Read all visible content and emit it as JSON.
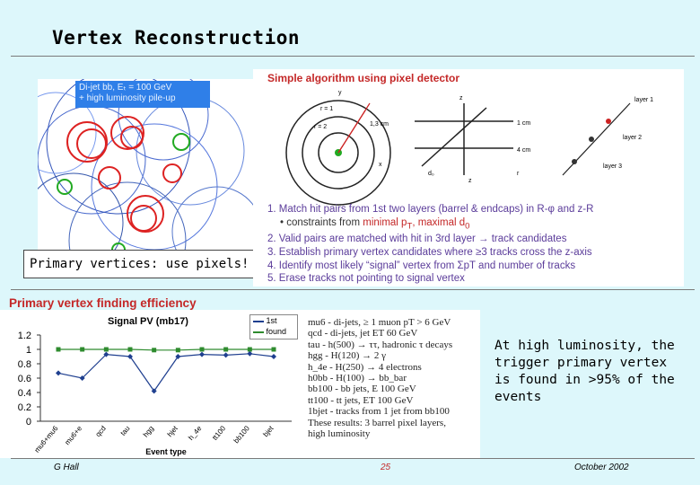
{
  "slide": {
    "title": "Vertex Reconstruction",
    "primary_label": "Primary vertices: use pixels!",
    "event_label_line1": "Di-jet bb, Eₜ = 100 GeV",
    "event_label_line2": "+ high luminosity pile-up"
  },
  "algorithm": {
    "title": "Simple algorithm using pixel detector",
    "diagram_labels": [
      "r = 1",
      "r = 2",
      "1,3 cm",
      "y",
      "x",
      "z",
      "1 cm",
      "4 cm",
      "r",
      "layer 1",
      "layer 2",
      "layer 3",
      "d₀",
      "z"
    ],
    "step1": "1. Match hit pairs from 1st two layers (barrel & endcaps) in R-φ and z-R",
    "step1b_a": "• constraints from ",
    "step1b_b": "minimal p",
    "step1b_c": "T",
    "step1b_d": ", maximal d",
    "step1b_e": "0",
    "step2": "2. Valid pairs are matched with hit in 3rd layer → track candidates",
    "step3": "3. Establish primary vertex candidates where ≥3 tracks cross the z-axis",
    "step4": "4. Identify most likely “signal” vertex from ΣpT and number of tracks",
    "step5": "5. Erase tracks not pointing to signal vertex"
  },
  "efficiency": {
    "title": "Primary vertex finding efficiency",
    "events": [
      "mu6 - di-jets, ≥ 1 muon pT > 6 GeV",
      "qcd - di-jets, jet ET   60 GeV",
      "tau - h(500) → ττ, hadronic τ decays",
      "hgg - H(120) → 2 γ",
      "h_4e - H(250) → 4 electrons",
      "h0bb - H(100) → bb_bar",
      "bb100 - bb jets, E    100 GeV",
      "tt100 - tt jets, ET    100 GeV",
      "1bjet - tracks from 1 jet from bb100",
      "These results: 3 barrel pixel layers,",
      "high luminosity"
    ]
  },
  "note": "At high luminosity, the trigger primary vertex is found in >95% of the events",
  "footer": {
    "author": "G Hall",
    "page": "25",
    "date": "October 2002"
  },
  "chart_data": {
    "type": "line",
    "title": "Signal PV (mb17)",
    "xlabel": "Event type",
    "ylabel": "",
    "categories": [
      "mu6+mu6",
      "mu6+e",
      "qcd",
      "tau",
      "hgg",
      "hjet",
      "h_4e",
      "tt100",
      "bb100",
      "bjet"
    ],
    "ylim": [
      0,
      1.2
    ],
    "yticks": [
      "0",
      "0.2",
      "0.4",
      "0.6",
      "0.8",
      "1",
      "1.2"
    ],
    "series": [
      {
        "name": "1st",
        "color": "#1f3f8f",
        "values": [
          0.67,
          0.6,
          0.93,
          0.9,
          0.42,
          0.9,
          0.93,
          0.92,
          0.94,
          0.9
        ]
      },
      {
        "name": "found",
        "color": "#2e8b2e",
        "values": [
          1.0,
          1.0,
          1.0,
          1.0,
          0.99,
          0.99,
          1.0,
          1.0,
          1.0,
          1.0
        ]
      }
    ]
  }
}
